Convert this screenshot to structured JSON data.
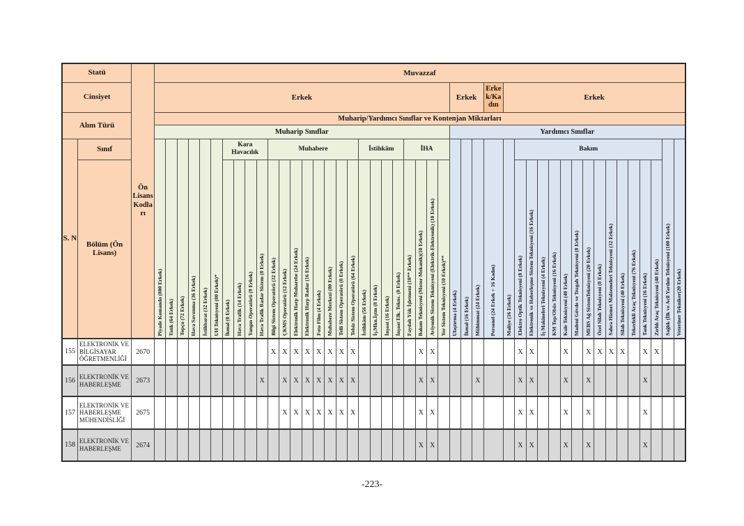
{
  "page": {
    "footer": "-223-"
  },
  "colors": {
    "header_orange": "#FBD5B5",
    "header_orange_dark": "#FAC090",
    "muharip_green": "#EBF1DD",
    "yardimci_blue": "#DBE5F1",
    "shaded_row_gray": "#D9D9D9"
  },
  "table": {
    "mark": "X",
    "left_header": {
      "statu": "Statü",
      "cinsiyet": "Cinsiyet",
      "alim_turu": "Alım Türü",
      "sinif": "Sınıf",
      "sn": "S. N",
      "bolum": "Bölüm (Ön Lisans)",
      "on_lisans_kodlari": "Ön Lisans Kodları"
    },
    "top_header": {
      "muvazzaf": "Muvazzaf",
      "gender": [
        {
          "label": "Erkek",
          "span": 26,
          "dark": false
        },
        {
          "label": "Erkek",
          "span": 3,
          "dark": false
        },
        {
          "label": "Erkek/Kadın",
          "span": 1,
          "dark": true
        },
        {
          "label": "Erkek",
          "span": 16,
          "dark": false
        }
      ],
      "alim": "Muharip/Yardımcı Sınıflar ve Kontenjan Miktarları",
      "sections": [
        {
          "label": "Muharip Sınıflar",
          "span": 26,
          "section": "m"
        },
        {
          "label": "Yardımcı Sınıflar",
          "span": 20,
          "section": "y"
        }
      ]
    },
    "columns": [
      {
        "label": "Piyade Komando (800 Erkek)",
        "section": "m",
        "group": null
      },
      {
        "label": "Tank (64 Erkek)",
        "section": "m",
        "group": null
      },
      {
        "label": "Topçu (72 Erkek)",
        "section": "m",
        "group": null
      },
      {
        "label": "Hava Savunma (36 Erkek)",
        "section": "m",
        "group": null
      },
      {
        "label": "İstihbarat (32 Erkek)",
        "section": "m",
        "group": null
      },
      {
        "label": "UH Teknisyeni (80 Erkek)*",
        "section": "m",
        "group": null
      },
      {
        "label": "İkmal (8 Erkek)",
        "section": "m",
        "group": "Kara Havacılık"
      },
      {
        "label": "Hava Trafik (14 Erkek)",
        "section": "m",
        "group": "Kara Havacılık"
      },
      {
        "label": "Yangın Operatörü (9 Erkek)",
        "section": "m",
        "group": "Kara Havacılık"
      },
      {
        "label": "Hava Trafik Radar Sistem (8 Erkek)",
        "section": "m",
        "group": "Kara Havacılık"
      },
      {
        "label": "Bilgi Sistem Operatörü (32 Erkek)",
        "section": "m",
        "group": "Muhabere"
      },
      {
        "label": "ÇKMS Operatörü (12 Erkek)",
        "section": "m",
        "group": "Muhabere"
      },
      {
        "label": "Elektronik Harp Muharebe (24 Erkek)",
        "section": "m",
        "group": "Muhabere"
      },
      {
        "label": "Elektronik Harp Radar (16 Erkek)",
        "section": "m",
        "group": "Muhabere"
      },
      {
        "label": "Foto Film (4 Erkek)",
        "section": "m",
        "group": "Muhabere"
      },
      {
        "label": "Muhabere Merkezi (80 Erkek)",
        "section": "m",
        "group": "Muhabere"
      },
      {
        "label": "Telli Sistem Operatörü (8 Erkek)",
        "section": "m",
        "group": "Muhabere"
      },
      {
        "label": "Telsiz Sistem Operatörü (64 Erkek)",
        "section": "m",
        "group": "Muhabere"
      },
      {
        "label": "İstihkâm (56 Erkek)",
        "section": "m",
        "group": "İstihkâm"
      },
      {
        "label": "İş.Mkn.İştm (8 Erkek)",
        "section": "m",
        "group": "İstihkâm"
      },
      {
        "label": "İnşaat (16 Erkek)",
        "section": "m",
        "group": "İstihkâm"
      },
      {
        "label": "İnşaat Elk. Tekns. (8 Erkek)",
        "section": "m",
        "group": "İstihkâm"
      },
      {
        "label": "Faydalı Yük İşletmeni (10** Erkek)",
        "section": "m",
        "group": "İHA"
      },
      {
        "label": "Bakım Teknisyeni (Motor Mekanik)(10 Erkek)",
        "section": "m",
        "group": "İHA"
      },
      {
        "label": "Aviyonik Sistem Teknisyeni (Elektrik-Elektronik) (10 Erkek)",
        "section": "m",
        "group": "İHA"
      },
      {
        "label": "Yer Sistem Teknisyeni (10 Erkek)**",
        "section": "m",
        "group": "İHA"
      },
      {
        "label": "Ulaştırma (4 Erkek)",
        "section": "y",
        "group": null
      },
      {
        "label": "İkmal (16 Erkek)",
        "section": "y",
        "group": null
      },
      {
        "label": "Mühimmat (24 Erkek)",
        "section": "y",
        "group": null
      },
      {
        "label": "Personel (24 Erkek + 16 Kadın)",
        "section": "y",
        "group": null,
        "wide": true
      },
      {
        "label": "Maliye (16 Erkek)",
        "section": "y",
        "group": null
      },
      {
        "label": "Elektro Optik Teknisyeni (8 Erkek)",
        "section": "y",
        "group": "Bakım"
      },
      {
        "label": "Elektronik ve Haberleşme Sistem Teknisyeni (16 Erkek)",
        "section": "y",
        "group": "Bakım"
      },
      {
        "label": "İş Makineleri Teknisyeni (4 Erkek)",
        "section": "y",
        "group": "Bakım"
      },
      {
        "label": "KM Top/Obüs Teknisyeni (16 Erkek)",
        "section": "y",
        "group": "Bakım"
      },
      {
        "label": "Kule Teknisyeni (40 Erkek)",
        "section": "y",
        "group": "Bakım"
      },
      {
        "label": "Madeni Gövde ve Tezgah Teknisyeni (8 Erkek)",
        "section": "y",
        "group": "Bakım"
      },
      {
        "label": "MEBS Ağ SistemTeknisyeni (20 Erkek)",
        "section": "y",
        "group": "Bakım"
      },
      {
        "label": "Özel Silah Teknisyeni (8 Erkek)",
        "section": "y",
        "group": "Bakım"
      },
      {
        "label": "Sahra Hizmet Malzemeleri Teknisyeni (32 Erkek)",
        "section": "y",
        "group": "Bakım"
      },
      {
        "label": "Silah Teknisyeni (40 Erkek)",
        "section": "y",
        "group": "Bakım"
      },
      {
        "label": "Tekerlekli Araç Teknisyeni (76 Erkek)",
        "section": "y",
        "group": "Bakım"
      },
      {
        "label": "Tank Teknisyeni (16 Erkek)",
        "section": "y",
        "group": "Bakım"
      },
      {
        "label": "Zırhlı Araç Teknisyeni (40 Erkek)",
        "section": "y",
        "group": "Bakım"
      },
      {
        "label": "Sağlık (İlk ve Acil Yardım Teknisyeni (100 Erkek)",
        "section": "y",
        "group": null
      },
      {
        "label": "Veteriner Tekniker(20 Erkek)",
        "section": "y",
        "group": null
      }
    ],
    "rows": [
      {
        "sn": "155",
        "bolum": "ELEKTRONİK VE BİLGİSAYAR ÖĞRETMENLİĞİ",
        "kod": "2670",
        "shade": false,
        "marks": [
          11,
          12,
          13,
          14,
          15,
          16,
          17,
          18,
          24,
          25,
          32,
          33,
          36,
          38,
          39,
          40,
          41,
          43,
          44
        ]
      },
      {
        "sn": "156",
        "bolum": "ELEKTRONİK VE HABERLEŞME",
        "kod": "2673",
        "shade": true,
        "marks": [
          10,
          12,
          13,
          14,
          15,
          16,
          17,
          18,
          24,
          25,
          29,
          32,
          33,
          36,
          38,
          43
        ]
      },
      {
        "sn": "157",
        "bolum": "ELEKTRONİK VE HABERLEŞME MÜHENDİSLİĞİ",
        "kod": "2675",
        "shade": false,
        "marks": [
          12,
          13,
          14,
          15,
          16,
          17,
          18,
          24,
          25,
          32,
          33,
          36,
          38,
          43
        ]
      },
      {
        "sn": "158",
        "bolum": "ELEKTRONİK VE HABERLEŞME",
        "kod": "2674",
        "shade": true,
        "marks": [
          24,
          25,
          32,
          33,
          36,
          38,
          43
        ]
      }
    ]
  }
}
